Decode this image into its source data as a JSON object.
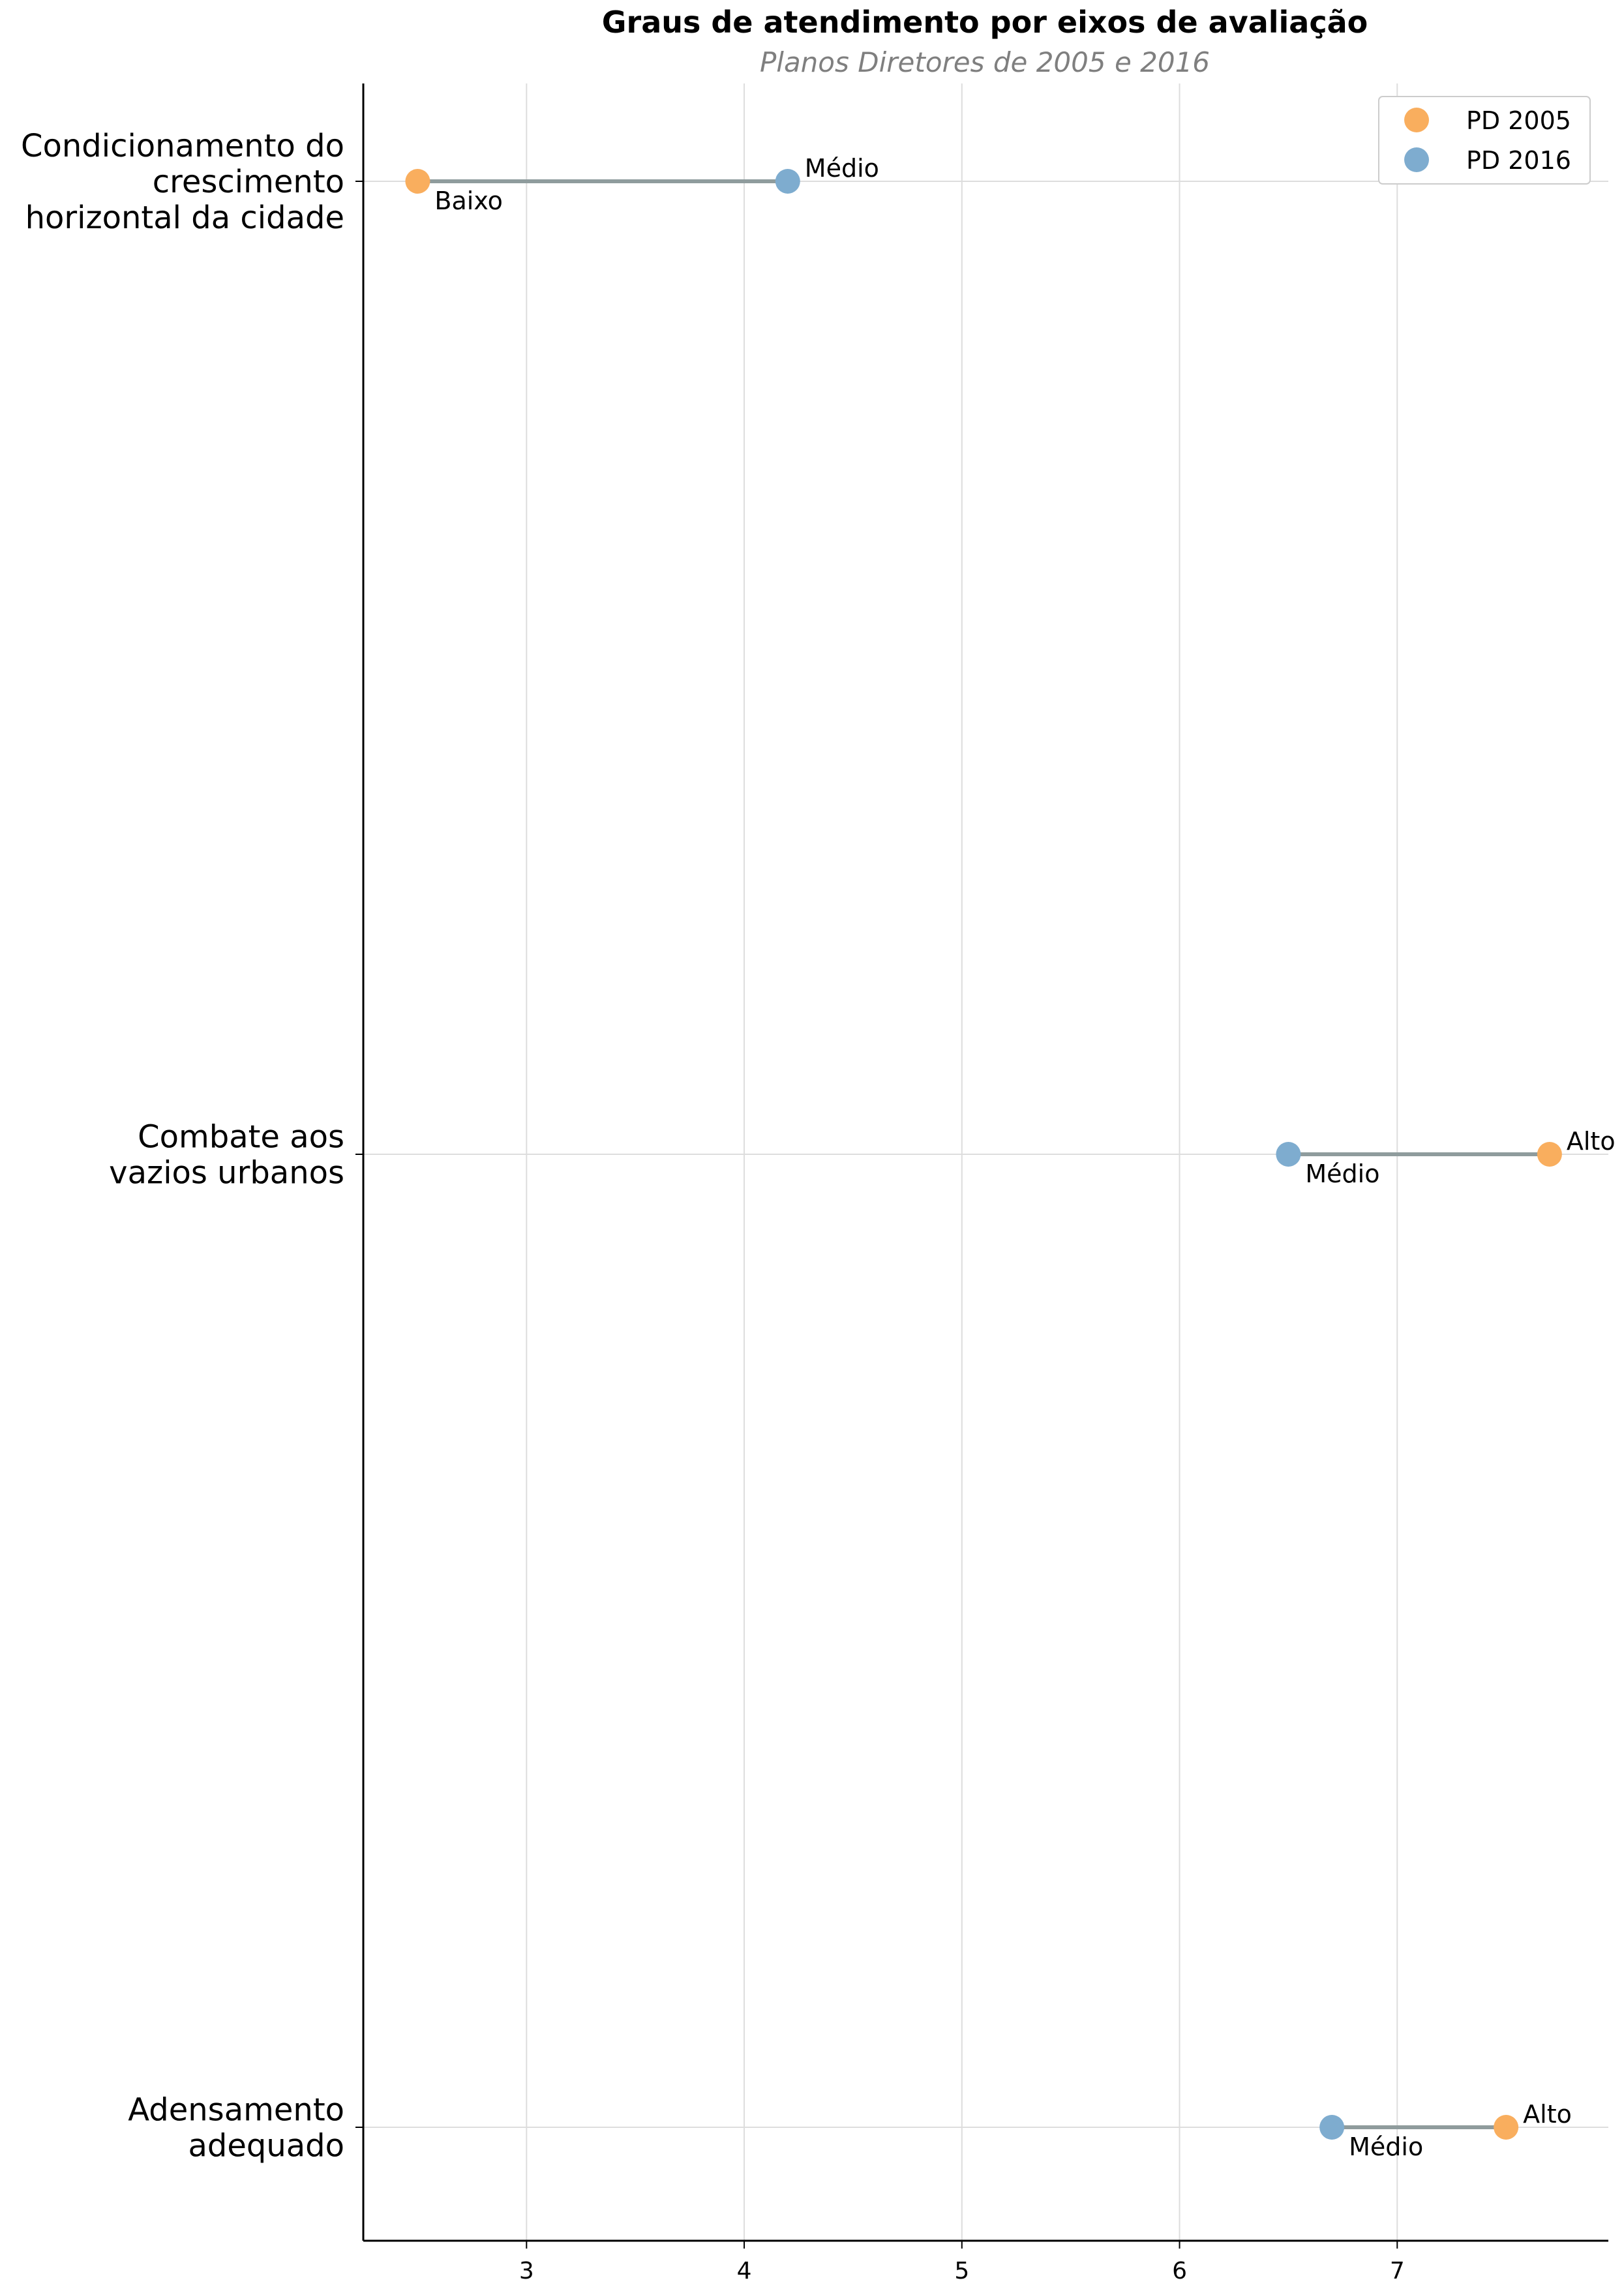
{
  "chart_data": {
    "type": "dumbbell",
    "title": "Graus de atendimento por eixos de avaliação",
    "subtitle": "Planos Diretores de 2005 e 2016",
    "xlabel": "",
    "ylabel": "",
    "xlim": [
      2.25,
      7.97
    ],
    "xticks": [
      3,
      4,
      5,
      6,
      7
    ],
    "grid": true,
    "legend_position": "top-right",
    "categories": [
      {
        "lines": [
          "Condicionamento do",
          "crescimento",
          "horizontal da cidade"
        ]
      },
      {
        "lines": [
          "Combate aos",
          "vazios urbanos"
        ]
      },
      {
        "lines": [
          "Adensamento",
          "adequado"
        ]
      }
    ],
    "series": [
      {
        "name": "PD 2005",
        "color": "#f9ae5e",
        "values": [
          2.5,
          7.7,
          7.5
        ],
        "labels": [
          "Baixo",
          "Alto",
          "Alto"
        ]
      },
      {
        "name": "PD 2016",
        "color": "#7eaccf",
        "values": [
          4.2,
          6.5,
          6.7
        ],
        "labels": [
          "Médio",
          "Médio",
          "Médio"
        ]
      }
    ],
    "connector_color": "#8f9c9d"
  }
}
